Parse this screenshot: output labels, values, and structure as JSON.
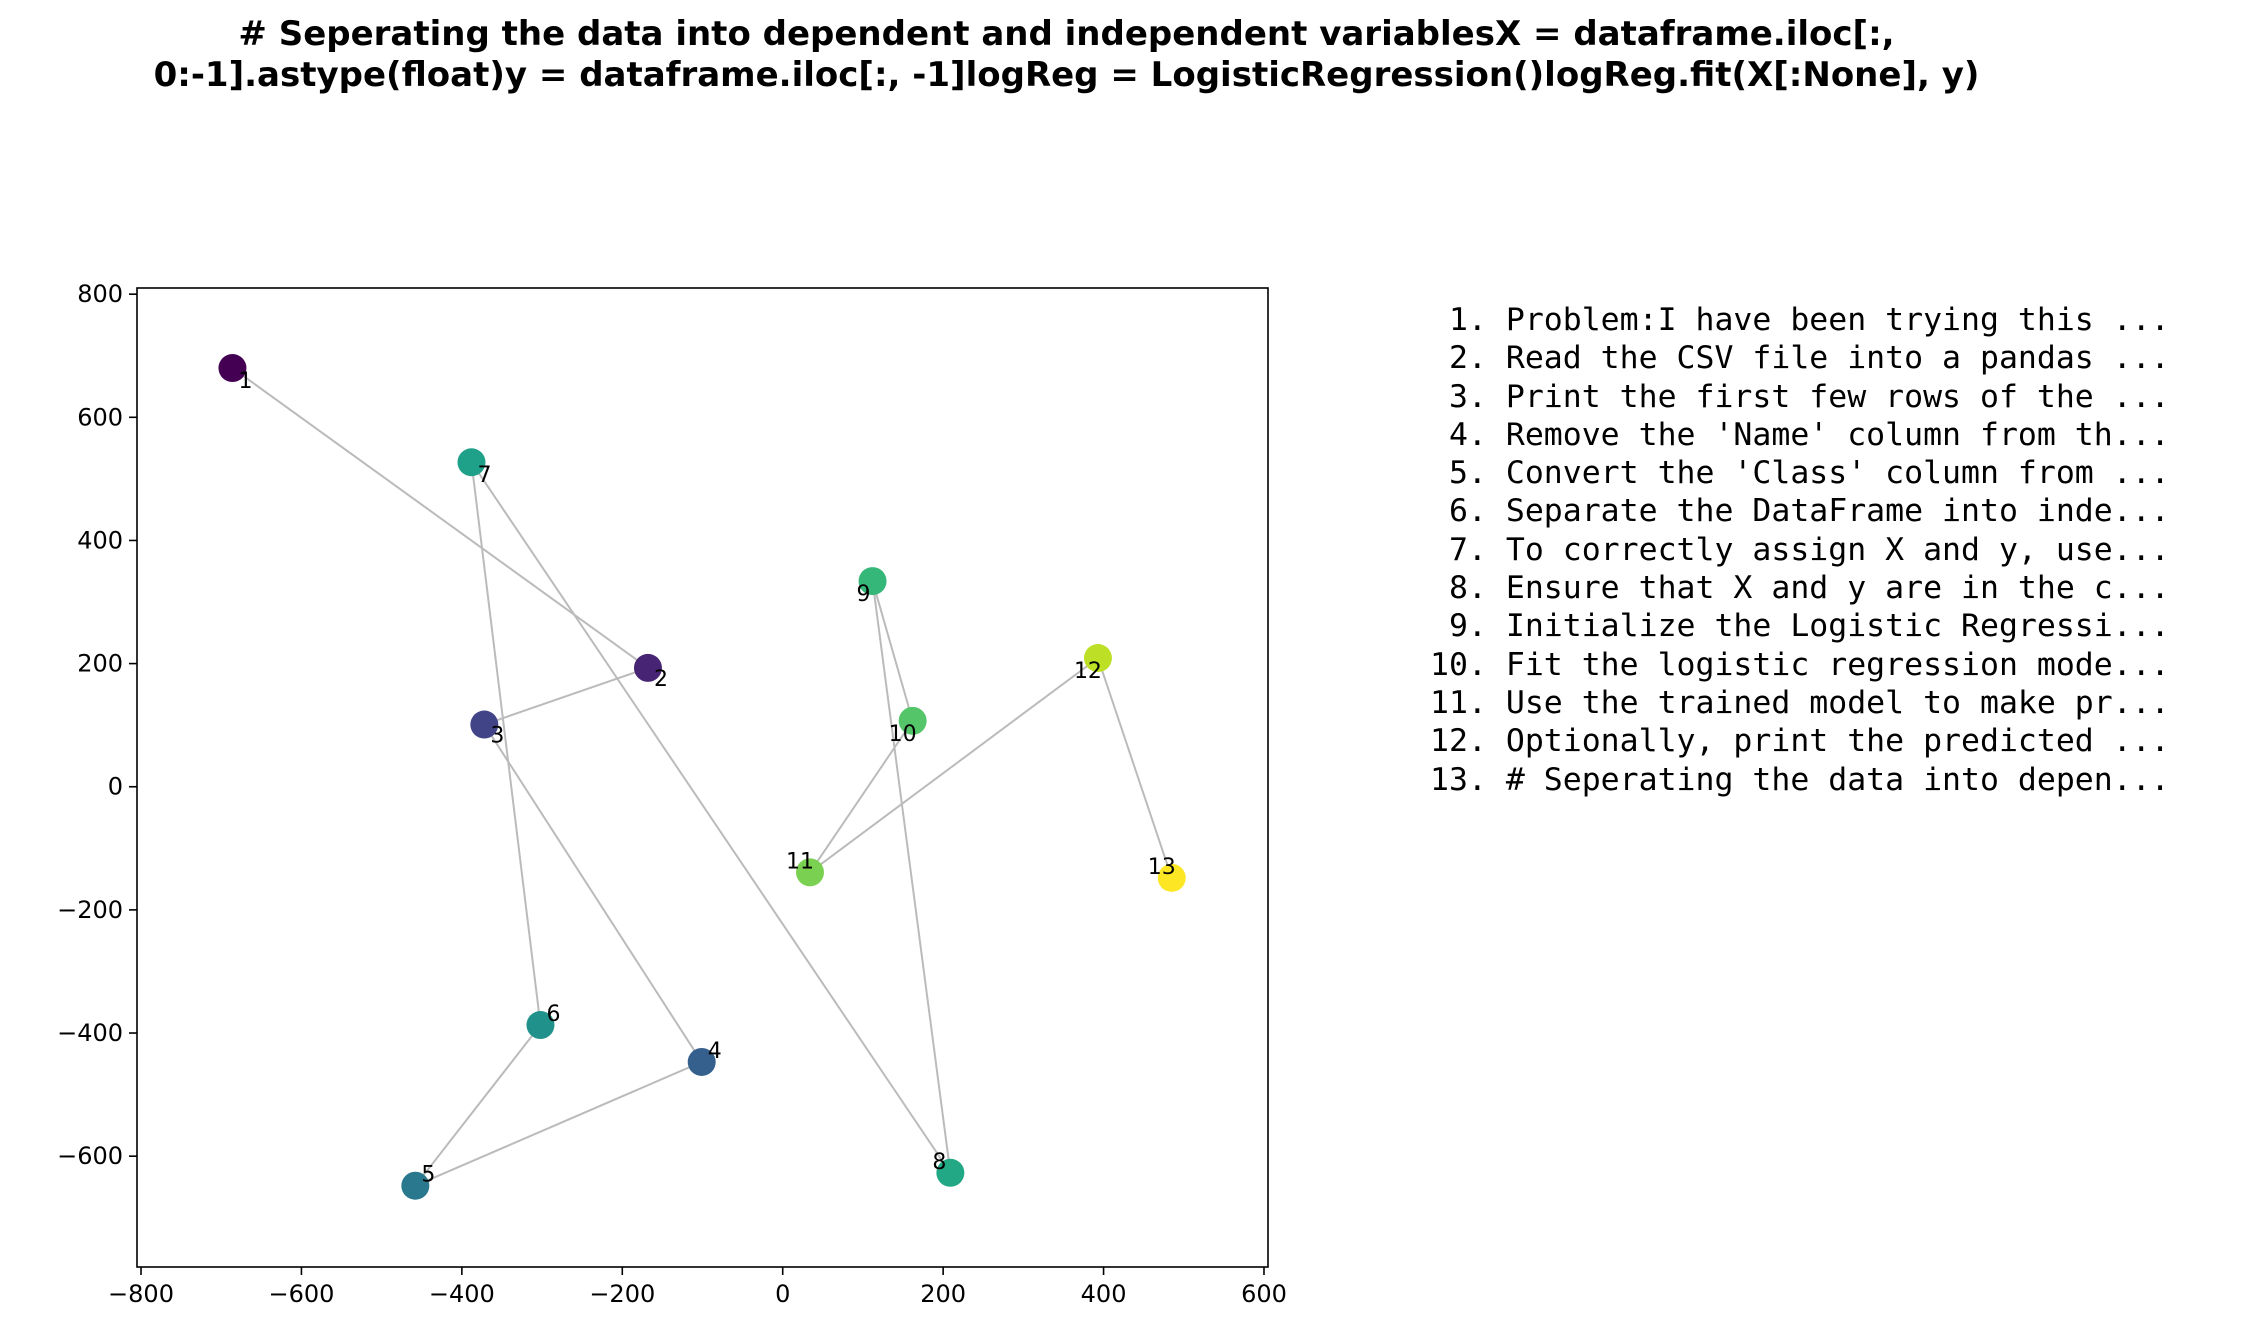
{
  "chart_data": {
    "type": "scatter",
    "title": [
      "# Seperating the data into dependent and independent variablesX = dataframe.iloc[:,",
      "0:-1].astype(float)y = dataframe.iloc[:, -1]logReg = LogisticRegression()logReg.fit(X[:None], y)"
    ],
    "xlabel": "",
    "ylabel": "",
    "xlim": [
      -805,
      605
    ],
    "ylim": [
      -780,
      810
    ],
    "x_ticks": [
      -800,
      -600,
      -400,
      -200,
      0,
      200,
      400,
      600
    ],
    "y_ticks": [
      -600,
      -400,
      -200,
      0,
      200,
      400,
      600,
      800
    ],
    "grid": false,
    "colormap": "viridis",
    "connector_color": "#bbbbbb",
    "points": [
      {
        "label": "1",
        "x": -686,
        "y": 680,
        "color": "#440154"
      },
      {
        "label": "2",
        "x": -168,
        "y": 193,
        "color": "#482475"
      },
      {
        "label": "3",
        "x": -372,
        "y": 101,
        "color": "#414487"
      },
      {
        "label": "4",
        "x": -101,
        "y": -447,
        "color": "#355f8d"
      },
      {
        "label": "5",
        "x": -458,
        "y": -648,
        "color": "#2a788e"
      },
      {
        "label": "6",
        "x": -302,
        "y": -387,
        "color": "#21918c"
      },
      {
        "label": "7",
        "x": -388,
        "y": 527,
        "color": "#1fa088"
      },
      {
        "label": "8",
        "x": 209,
        "y": -627,
        "color": "#22a884"
      },
      {
        "label": "9",
        "x": 112,
        "y": 334,
        "color": "#35b779"
      },
      {
        "label": "10",
        "x": 162,
        "y": 107,
        "color": "#54c568"
      },
      {
        "label": "11",
        "x": 34,
        "y": -139,
        "color": "#7ad151"
      },
      {
        "label": "12",
        "x": 393,
        "y": 209,
        "color": "#bddf26"
      },
      {
        "label": "13",
        "x": 485,
        "y": -148,
        "color": "#fde725"
      }
    ],
    "legend_items": [
      " 1. Problem:I have been trying this ...",
      " 2. Read the CSV file into a pandas ...",
      " 3. Print the first few rows of the ...",
      " 4. Remove the 'Name' column from th...",
      " 5. Convert the 'Class' column from ...",
      " 6. Separate the DataFrame into inde...",
      " 7. To correctly assign X and y, use...",
      " 8. Ensure that X and y are in the c...",
      " 9. Initialize the Logistic Regressi...",
      "10. Fit the logistic regression mode...",
      "11. Use the trained model to make pr...",
      "12. Optionally, print the predicted ...",
      "13. # Seperating the data into depen..."
    ]
  }
}
